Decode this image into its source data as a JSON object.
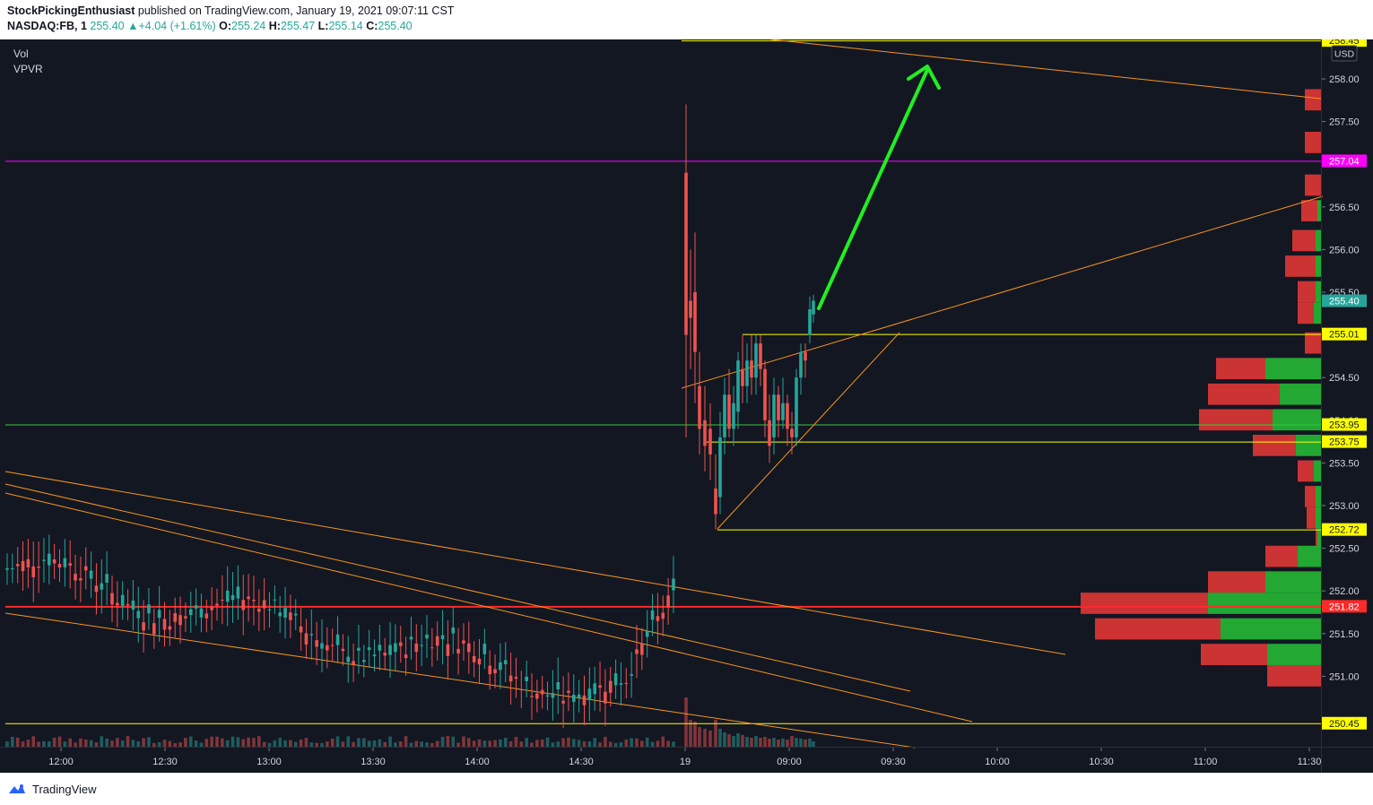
{
  "header": {
    "author": "StockPickingEnthusiast",
    "published_text": "published on TradingView.com, January 19, 2021 09:07:11 CST",
    "symbol": "NASDAQ:FB, 1",
    "last": "255.40",
    "change": "+4.04 (+1.61%)",
    "o_label": "O:",
    "o": "255.24",
    "h_label": "H:",
    "h": "255.47",
    "l_label": "L:",
    "l": "255.14",
    "c_label": "C:",
    "c": "255.40"
  },
  "indicators": [
    "Vol",
    "VPVR"
  ],
  "currency": "USD",
  "price_axis": {
    "min": 250.25,
    "max": 258.45,
    "ticks": [
      "258.00",
      "257.50",
      "256.50",
      "256.00",
      "255.50",
      "254.50",
      "254.00",
      "253.50",
      "253.00",
      "252.50",
      "252.00",
      "251.50",
      "251.00"
    ],
    "tick_values": [
      258.0,
      257.5,
      256.5,
      256.0,
      255.5,
      254.5,
      254.0,
      253.5,
      253.0,
      252.5,
      252.0,
      251.5,
      251.0
    ]
  },
  "time_axis": [
    "12:00",
    "12:30",
    "13:00",
    "13:30",
    "14:00",
    "14:30",
    "19",
    "09:00",
    "09:30",
    "10:00",
    "10:30",
    "11:00",
    "11:30"
  ],
  "price_labels": [
    {
      "text": "258.45",
      "value": 258.45,
      "bg": "#ffff00",
      "fg": "#131722"
    },
    {
      "text": "257.04",
      "value": 257.04,
      "bg": "#ff00ff",
      "fg": "#ffffff"
    },
    {
      "text": "255.40",
      "value": 255.4,
      "bg": "#26a69a",
      "fg": "#ffffff"
    },
    {
      "text": "255.01",
      "value": 255.01,
      "bg": "#ffff00",
      "fg": "#131722"
    },
    {
      "text": "253.95",
      "value": 253.95,
      "bg": "#ffff00",
      "fg": "#131722"
    },
    {
      "text": "253.75",
      "value": 253.75,
      "bg": "#ffff00",
      "fg": "#131722"
    },
    {
      "text": "252.72",
      "value": 252.72,
      "bg": "#ffff00",
      "fg": "#131722"
    },
    {
      "text": "251.82",
      "value": 251.82,
      "bg": "#ff2a2a",
      "fg": "#ffffff"
    },
    {
      "text": "250.45",
      "value": 250.45,
      "bg": "#ffff00",
      "fg": "#131722"
    }
  ],
  "levels": [
    {
      "value": 258.45,
      "color": "#ffff00"
    },
    {
      "value": 257.04,
      "color": "#ff00ff"
    },
    {
      "value": 255.01,
      "color": "#ffff00"
    },
    {
      "value": 253.95,
      "color": "#33cc33"
    },
    {
      "value": 253.75,
      "color": "#ffff00"
    },
    {
      "value": 252.72,
      "color": "#ffff00"
    },
    {
      "value": 251.82,
      "color": "#ff2a2a"
    },
    {
      "value": 250.45,
      "color": "#ffff00"
    }
  ],
  "footer": {
    "brand": "TradingView"
  },
  "colors": {
    "background": "#131722",
    "up": "#26a69a",
    "down": "#ef5350",
    "trend": "#f7941d",
    "arrow": "#22ee22",
    "vp_up": "#22a833",
    "vp_down": "#cc3333"
  }
}
